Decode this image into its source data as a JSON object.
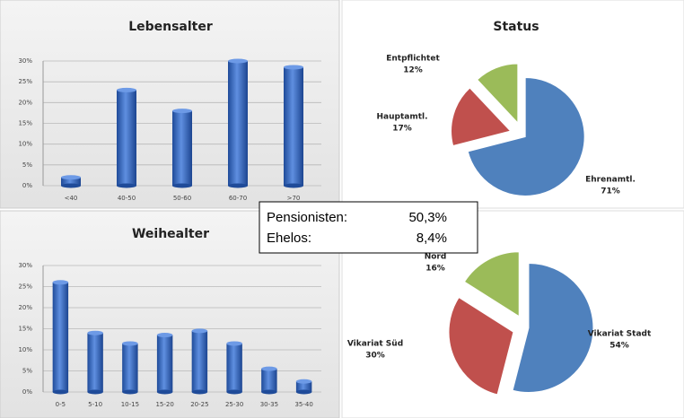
{
  "chart_data": [
    {
      "type": "bar",
      "title": "Lebensalter",
      "categories": [
        "<40",
        "40-50",
        "50-60",
        "60-70",
        ">70"
      ],
      "values": [
        2,
        23,
        18,
        30,
        28.5
      ],
      "color": "#3a6cc0",
      "ylim": [
        0,
        30
      ],
      "yticks": [
        {
          "value": 0,
          "label": "0%"
        },
        {
          "value": 5,
          "label": "5%"
        },
        {
          "value": 10,
          "label": "10%"
        },
        {
          "value": 15,
          "label": "15%"
        },
        {
          "value": 20,
          "label": "20%"
        },
        {
          "value": 25,
          "label": "25%"
        },
        {
          "value": 30,
          "label": "30%"
        }
      ],
      "grid": true
    },
    {
      "type": "pie",
      "title": "Status",
      "categories": [
        "Ehrenamtl.",
        "Hauptamtl.",
        "Entpflichtet"
      ],
      "values": [
        71,
        17,
        12
      ],
      "value_labels": [
        "71%",
        "17%",
        "12%"
      ],
      "colors": [
        "#4f81bd",
        "#c0504d",
        "#9bbb59"
      ]
    },
    {
      "type": "bar",
      "title": "Weihealter",
      "categories": [
        "0-5",
        "5-10",
        "10-15",
        "15-20",
        "20-25",
        "25-30",
        "30-35",
        "35-40"
      ],
      "values": [
        26,
        14,
        11.5,
        13.5,
        14.5,
        11.5,
        5.5,
        2.5
      ],
      "color": "#3a6cc0",
      "ylim": [
        0,
        30
      ],
      "yticks": [
        {
          "value": 0,
          "label": "0%"
        },
        {
          "value": 5,
          "label": "5%"
        },
        {
          "value": 10,
          "label": "10%"
        },
        {
          "value": 15,
          "label": "15%"
        },
        {
          "value": 20,
          "label": "20%"
        },
        {
          "value": 25,
          "label": "25%"
        },
        {
          "value": 30,
          "label": "30%"
        }
      ],
      "grid": true
    },
    {
      "type": "pie",
      "categories": [
        "Vikariat Stadt",
        "Vikariat Süd",
        "Nord"
      ],
      "values": [
        54,
        30,
        16
      ],
      "value_labels": [
        "54%",
        "30%",
        "16%"
      ],
      "colors": [
        "#4f81bd",
        "#c0504d",
        "#9bbb59"
      ]
    }
  ],
  "notes": [
    {
      "label": "Pensionisten:",
      "value": "50,3%"
    },
    {
      "label": "Ehelos:",
      "value": "8,4%"
    }
  ]
}
